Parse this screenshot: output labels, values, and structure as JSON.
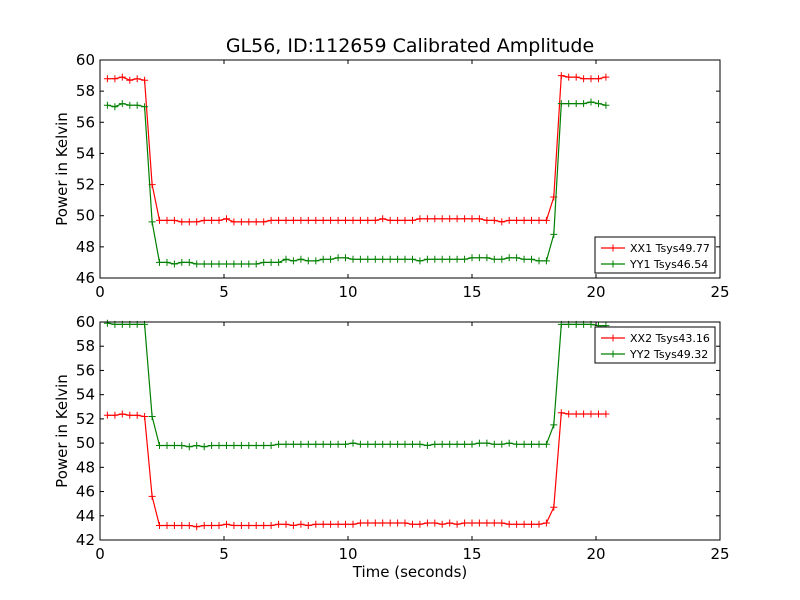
{
  "title": "GL56, ID:112659 Calibrated Amplitude",
  "xlabel": "Time (seconds)",
  "chart_data": [
    {
      "type": "line",
      "ylabel": "Power in Kelvin",
      "xlim": [
        0,
        25
      ],
      "ylim": [
        46,
        60
      ],
      "xticks": [
        0,
        5,
        10,
        15,
        20,
        25
      ],
      "yticks": [
        46,
        48,
        50,
        52,
        54,
        56,
        58,
        60
      ],
      "legend_position": "lower-right",
      "series": [
        {
          "name": "XX1 Tsys49.77",
          "color": "#ff0000",
          "x": [
            0.3,
            0.6,
            0.9,
            1.2,
            1.5,
            1.8,
            2.1,
            2.4,
            2.7,
            3.0,
            3.3,
            3.6,
            3.9,
            4.2,
            4.5,
            4.8,
            5.1,
            5.4,
            5.7,
            6.0,
            6.3,
            6.6,
            6.9,
            7.2,
            7.5,
            7.8,
            8.1,
            8.4,
            8.7,
            9.0,
            9.3,
            9.6,
            9.9,
            10.2,
            10.5,
            10.8,
            11.1,
            11.4,
            11.7,
            12.0,
            12.3,
            12.6,
            12.9,
            13.2,
            13.5,
            13.8,
            14.1,
            14.4,
            14.7,
            15.0,
            15.3,
            15.6,
            15.9,
            16.2,
            16.5,
            16.8,
            17.1,
            17.4,
            17.7,
            18.0,
            18.3,
            18.6,
            18.9,
            19.2,
            19.5,
            19.8,
            20.1,
            20.4
          ],
          "y": [
            58.8,
            58.8,
            58.9,
            58.7,
            58.8,
            58.7,
            52.0,
            49.7,
            49.7,
            49.7,
            49.6,
            49.6,
            49.6,
            49.7,
            49.7,
            49.7,
            49.8,
            49.6,
            49.6,
            49.6,
            49.6,
            49.6,
            49.7,
            49.7,
            49.7,
            49.7,
            49.7,
            49.7,
            49.7,
            49.7,
            49.7,
            49.7,
            49.7,
            49.7,
            49.7,
            49.7,
            49.7,
            49.8,
            49.7,
            49.7,
            49.7,
            49.7,
            49.8,
            49.8,
            49.8,
            49.8,
            49.8,
            49.8,
            49.8,
            49.8,
            49.8,
            49.7,
            49.7,
            49.6,
            49.7,
            49.7,
            49.7,
            49.7,
            49.7,
            49.7,
            51.2,
            59.0,
            58.9,
            58.9,
            58.8,
            58.8,
            58.8,
            58.9
          ]
        },
        {
          "name": "YY1 Tsys46.54",
          "color": "#008000",
          "x": [
            0.3,
            0.6,
            0.9,
            1.2,
            1.5,
            1.8,
            2.1,
            2.4,
            2.7,
            3.0,
            3.3,
            3.6,
            3.9,
            4.2,
            4.5,
            4.8,
            5.1,
            5.4,
            5.7,
            6.0,
            6.3,
            6.6,
            6.9,
            7.2,
            7.5,
            7.8,
            8.1,
            8.4,
            8.7,
            9.0,
            9.3,
            9.6,
            9.9,
            10.2,
            10.5,
            10.8,
            11.1,
            11.4,
            11.7,
            12.0,
            12.3,
            12.6,
            12.9,
            13.2,
            13.5,
            13.8,
            14.1,
            14.4,
            14.7,
            15.0,
            15.3,
            15.6,
            15.9,
            16.2,
            16.5,
            16.8,
            17.1,
            17.4,
            17.7,
            18.0,
            18.3,
            18.6,
            18.9,
            19.2,
            19.5,
            19.8,
            20.1,
            20.4
          ],
          "y": [
            57.1,
            57.0,
            57.2,
            57.1,
            57.1,
            57.0,
            49.6,
            47.0,
            47.0,
            46.9,
            47.0,
            47.0,
            46.9,
            46.9,
            46.9,
            46.9,
            46.9,
            46.9,
            46.9,
            46.9,
            46.9,
            47.0,
            47.0,
            47.0,
            47.2,
            47.1,
            47.2,
            47.1,
            47.1,
            47.2,
            47.2,
            47.3,
            47.3,
            47.2,
            47.2,
            47.2,
            47.2,
            47.2,
            47.2,
            47.2,
            47.2,
            47.2,
            47.1,
            47.2,
            47.2,
            47.2,
            47.2,
            47.2,
            47.2,
            47.3,
            47.3,
            47.3,
            47.2,
            47.2,
            47.3,
            47.3,
            47.2,
            47.2,
            47.1,
            47.1,
            48.8,
            57.2,
            57.2,
            57.2,
            57.2,
            57.3,
            57.2,
            57.1
          ]
        }
      ]
    },
    {
      "type": "line",
      "ylabel": "Power in Kelvin",
      "xlim": [
        0,
        25
      ],
      "ylim": [
        42,
        60
      ],
      "xticks": [
        0,
        5,
        10,
        15,
        20,
        25
      ],
      "yticks": [
        42,
        44,
        46,
        48,
        50,
        52,
        54,
        56,
        58,
        60
      ],
      "legend_position": "upper-right",
      "series": [
        {
          "name": "XX2 Tsys43.16",
          "color": "#ff0000",
          "x": [
            0.3,
            0.6,
            0.9,
            1.2,
            1.5,
            1.8,
            2.1,
            2.4,
            2.7,
            3.0,
            3.3,
            3.6,
            3.9,
            4.2,
            4.5,
            4.8,
            5.1,
            5.4,
            5.7,
            6.0,
            6.3,
            6.6,
            6.9,
            7.2,
            7.5,
            7.8,
            8.1,
            8.4,
            8.7,
            9.0,
            9.3,
            9.6,
            9.9,
            10.2,
            10.5,
            10.8,
            11.1,
            11.4,
            11.7,
            12.0,
            12.3,
            12.6,
            12.9,
            13.2,
            13.5,
            13.8,
            14.1,
            14.4,
            14.7,
            15.0,
            15.3,
            15.6,
            15.9,
            16.2,
            16.5,
            16.8,
            17.1,
            17.4,
            17.7,
            18.0,
            18.3,
            18.6,
            18.9,
            19.2,
            19.5,
            19.8,
            20.1,
            20.4
          ],
          "y": [
            52.3,
            52.3,
            52.4,
            52.3,
            52.3,
            52.2,
            45.6,
            43.2,
            43.2,
            43.2,
            43.2,
            43.2,
            43.1,
            43.2,
            43.2,
            43.2,
            43.3,
            43.2,
            43.2,
            43.2,
            43.2,
            43.2,
            43.2,
            43.3,
            43.3,
            43.2,
            43.3,
            43.2,
            43.3,
            43.3,
            43.3,
            43.3,
            43.3,
            43.3,
            43.4,
            43.4,
            43.4,
            43.4,
            43.4,
            43.4,
            43.4,
            43.3,
            43.3,
            43.4,
            43.4,
            43.3,
            43.4,
            43.3,
            43.4,
            43.4,
            43.4,
            43.4,
            43.4,
            43.4,
            43.3,
            43.3,
            43.3,
            43.3,
            43.3,
            43.4,
            44.7,
            52.5,
            52.4,
            52.4,
            52.4,
            52.4,
            52.4,
            52.4
          ]
        },
        {
          "name": "YY2 Tsys49.32",
          "color": "#008000",
          "x": [
            0.3,
            0.6,
            0.9,
            1.2,
            1.5,
            1.8,
            2.1,
            2.4,
            2.7,
            3.0,
            3.3,
            3.6,
            3.9,
            4.2,
            4.5,
            4.8,
            5.1,
            5.4,
            5.7,
            6.0,
            6.3,
            6.6,
            6.9,
            7.2,
            7.5,
            7.8,
            8.1,
            8.4,
            8.7,
            9.0,
            9.3,
            9.6,
            9.9,
            10.2,
            10.5,
            10.8,
            11.1,
            11.4,
            11.7,
            12.0,
            12.3,
            12.6,
            12.9,
            13.2,
            13.5,
            13.8,
            14.1,
            14.4,
            14.7,
            15.0,
            15.3,
            15.6,
            15.9,
            16.2,
            16.5,
            16.8,
            17.1,
            17.4,
            17.7,
            18.0,
            18.3,
            18.6,
            18.9,
            19.2,
            19.5,
            19.8,
            20.1,
            20.4
          ],
          "y": [
            59.9,
            59.8,
            59.8,
            59.8,
            59.8,
            59.8,
            52.2,
            49.8,
            49.8,
            49.8,
            49.8,
            49.7,
            49.8,
            49.7,
            49.8,
            49.8,
            49.8,
            49.8,
            49.8,
            49.8,
            49.8,
            49.8,
            49.8,
            49.9,
            49.9,
            49.9,
            49.9,
            49.9,
            49.9,
            49.9,
            49.9,
            49.9,
            49.9,
            50.0,
            49.9,
            49.9,
            49.9,
            49.9,
            49.9,
            49.9,
            49.9,
            49.9,
            49.9,
            49.8,
            49.9,
            49.9,
            49.9,
            49.9,
            49.9,
            49.9,
            50.0,
            50.0,
            49.9,
            49.9,
            50.0,
            49.9,
            49.9,
            49.9,
            49.9,
            49.9,
            51.5,
            59.8,
            59.8,
            59.8,
            59.8,
            59.8,
            59.7,
            59.7
          ]
        }
      ]
    }
  ]
}
